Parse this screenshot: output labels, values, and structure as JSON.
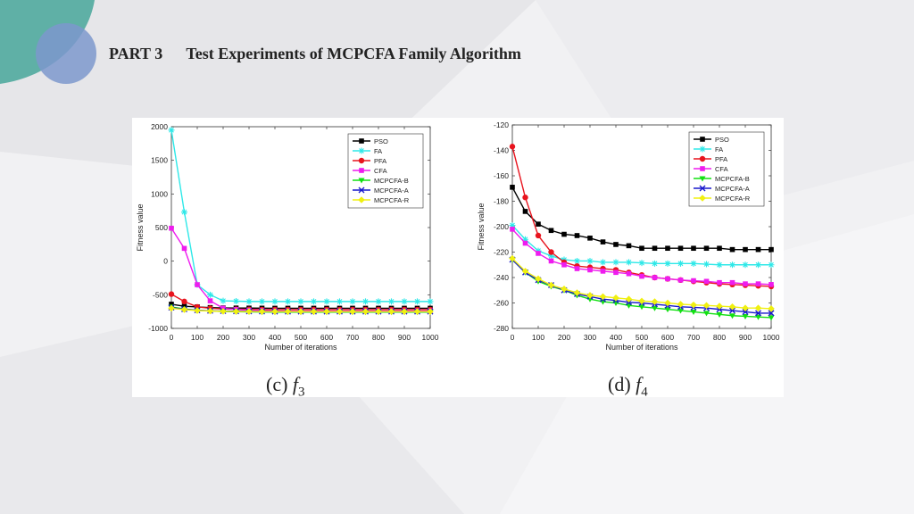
{
  "header": {
    "part": "PART 3",
    "title": "Test Experiments of MCPCFA Family Algorithm"
  },
  "colors": {
    "PSO": "#000000",
    "FA": "#2ee8e8",
    "PFA": "#e8141e",
    "CFA": "#ee1cee",
    "MCPCFA-B": "#12e012",
    "MCPCFA-A": "#1818cc",
    "MCPCFA-R": "#f0f010"
  },
  "chart_data": [
    {
      "type": "line",
      "caption": "(c)",
      "caption_f": "f",
      "caption_sub": "3",
      "xlabel": "Number of iterations",
      "ylabel": "Fitness value",
      "xlim": [
        0,
        1000
      ],
      "ylim": [
        -1000,
        2000
      ],
      "xticks": [
        0,
        100,
        200,
        300,
        400,
        500,
        600,
        700,
        800,
        900,
        1000
      ],
      "yticks": [
        -1000,
        -500,
        0,
        500,
        1000,
        1500,
        2000
      ],
      "grid": false,
      "legend": "top-right",
      "x": [
        0,
        50,
        100,
        150,
        200,
        250,
        300,
        350,
        400,
        450,
        500,
        550,
        600,
        650,
        700,
        750,
        800,
        850,
        900,
        950,
        1000
      ],
      "series": [
        {
          "name": "PSO",
          "values": [
            -640,
            -670,
            -680,
            -690,
            -695,
            -697,
            -698,
            -699,
            -700,
            -700,
            -700,
            -700,
            -700,
            -700,
            -700,
            -700,
            -700,
            -700,
            -700,
            -700,
            -700
          ]
        },
        {
          "name": "FA",
          "values": [
            1950,
            730,
            -350,
            -500,
            -590,
            -595,
            -600,
            -600,
            -600,
            -600,
            -600,
            -600,
            -600,
            -600,
            -600,
            -600,
            -600,
            -600,
            -600,
            -600,
            -600
          ]
        },
        {
          "name": "PFA",
          "values": [
            -490,
            -600,
            -680,
            -700,
            -710,
            -715,
            -718,
            -720,
            -720,
            -720,
            -720,
            -720,
            -720,
            -720,
            -720,
            -720,
            -720,
            -720,
            -720,
            -720,
            -720
          ]
        },
        {
          "name": "CFA",
          "values": [
            490,
            190,
            -350,
            -590,
            -700,
            -720,
            -730,
            -735,
            -740,
            -740,
            -740,
            -740,
            -740,
            -740,
            -740,
            -740,
            -740,
            -740,
            -740,
            -740,
            -740
          ]
        },
        {
          "name": "MCPCFA-B",
          "values": [
            -680,
            -710,
            -730,
            -740,
            -750,
            -752,
            -755,
            -757,
            -758,
            -758,
            -758,
            -758,
            -758,
            -758,
            -758,
            -758,
            -758,
            -758,
            -758,
            -758,
            -758
          ]
        },
        {
          "name": "MCPCFA-A",
          "values": [
            -690,
            -715,
            -730,
            -738,
            -742,
            -745,
            -747,
            -748,
            -749,
            -750,
            -750,
            -750,
            -750,
            -750,
            -750,
            -750,
            -750,
            -750,
            -750,
            -750,
            -750
          ]
        },
        {
          "name": "MCPCFA-R",
          "values": [
            -700,
            -720,
            -735,
            -742,
            -746,
            -748,
            -749,
            -750,
            -750,
            -750,
            -750,
            -750,
            -750,
            -750,
            -750,
            -750,
            -750,
            -750,
            -750,
            -750,
            -750
          ]
        }
      ]
    },
    {
      "type": "line",
      "caption": "(d)",
      "caption_f": "f",
      "caption_sub": "4",
      "xlabel": "Number of iterations",
      "ylabel": "Fitness value",
      "xlim": [
        0,
        1000
      ],
      "ylim": [
        -280,
        -120
      ],
      "xticks": [
        0,
        100,
        200,
        300,
        400,
        500,
        600,
        700,
        800,
        900,
        1000
      ],
      "yticks": [
        -280,
        -260,
        -240,
        -220,
        -200,
        -180,
        -160,
        -140,
        -120
      ],
      "grid": false,
      "legend": "top-right",
      "x": [
        0,
        50,
        100,
        150,
        200,
        250,
        300,
        350,
        400,
        450,
        500,
        550,
        600,
        650,
        700,
        750,
        800,
        850,
        900,
        950,
        1000
      ],
      "series": [
        {
          "name": "PSO",
          "values": [
            -169,
            -188,
            -198,
            -203,
            -206,
            -207,
            -209,
            -212,
            -214,
            -215,
            -217,
            -217,
            -217,
            -217,
            -217,
            -217,
            -217,
            -218,
            -218,
            -218,
            -218
          ]
        },
        {
          "name": "FA",
          "values": [
            -199,
            -210,
            -219,
            -223,
            -226,
            -227,
            -227,
            -228,
            -228,
            -228,
            -228.5,
            -229,
            -229,
            -229,
            -229,
            -229.5,
            -230,
            -230,
            -230,
            -230,
            -230
          ]
        },
        {
          "name": "PFA",
          "values": [
            -137,
            -177,
            -207,
            -220,
            -228,
            -231,
            -232,
            -233,
            -234,
            -236,
            -238,
            -240,
            -241,
            -242,
            -243,
            -244,
            -245,
            -245.5,
            -246,
            -246.5,
            -247
          ]
        },
        {
          "name": "CFA",
          "values": [
            -202,
            -213,
            -221,
            -227,
            -230,
            -233,
            -234,
            -235,
            -236,
            -237,
            -239,
            -240,
            -241,
            -242,
            -242.5,
            -243,
            -244,
            -244,
            -245,
            -245,
            -245.5
          ]
        },
        {
          "name": "MCPCFA-B",
          "values": [
            -226,
            -236,
            -243,
            -247,
            -250,
            -254,
            -257,
            -259,
            -260,
            -262,
            -263,
            -264,
            -265,
            -266,
            -267,
            -268,
            -269,
            -270,
            -270.5,
            -271,
            -271.5
          ]
        },
        {
          "name": "MCPCFA-A",
          "values": [
            -226,
            -236,
            -242,
            -246,
            -250,
            -253,
            -255,
            -257,
            -258,
            -259.5,
            -260,
            -261,
            -262,
            -263,
            -263.5,
            -264,
            -265,
            -266,
            -267,
            -268,
            -268
          ]
        },
        {
          "name": "MCPCFA-R",
          "values": [
            -225,
            -235,
            -241,
            -246,
            -249,
            -252,
            -254,
            -255,
            -256,
            -257,
            -258.5,
            -259,
            -260,
            -261,
            -261.5,
            -262,
            -262.5,
            -263,
            -264,
            -264,
            -264.5
          ]
        }
      ]
    }
  ]
}
